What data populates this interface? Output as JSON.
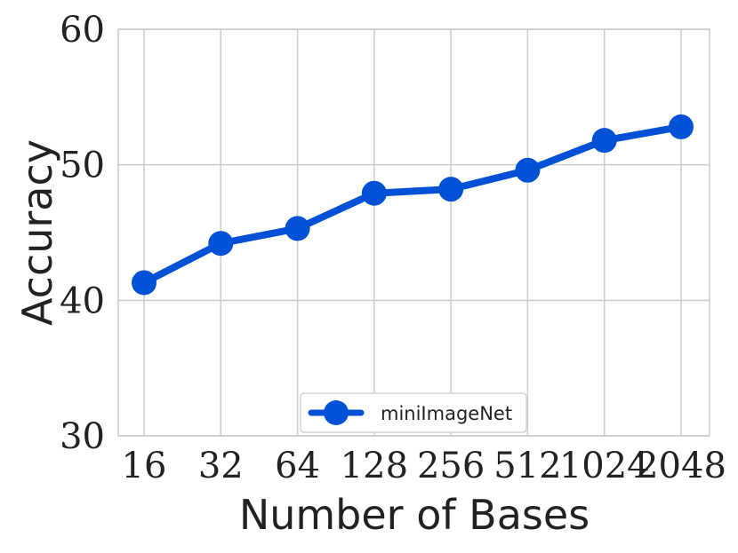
{
  "chart_data": {
    "type": "line",
    "categories": [
      "16",
      "32",
      "64",
      "128",
      "256",
      "512",
      "1024",
      "2048"
    ],
    "series": [
      {
        "name": "miniImageNet",
        "values": [
          41.3,
          44.2,
          45.3,
          47.9,
          48.2,
          49.6,
          51.8,
          52.8
        ],
        "color": "#0051d6"
      }
    ],
    "xlabel": "Number of Bases",
    "ylabel": "Accuracy",
    "ylim": [
      30,
      60
    ],
    "yticks": [
      "30",
      "40",
      "50",
      "60"
    ],
    "grid": true,
    "legend_position": "lower-center"
  }
}
